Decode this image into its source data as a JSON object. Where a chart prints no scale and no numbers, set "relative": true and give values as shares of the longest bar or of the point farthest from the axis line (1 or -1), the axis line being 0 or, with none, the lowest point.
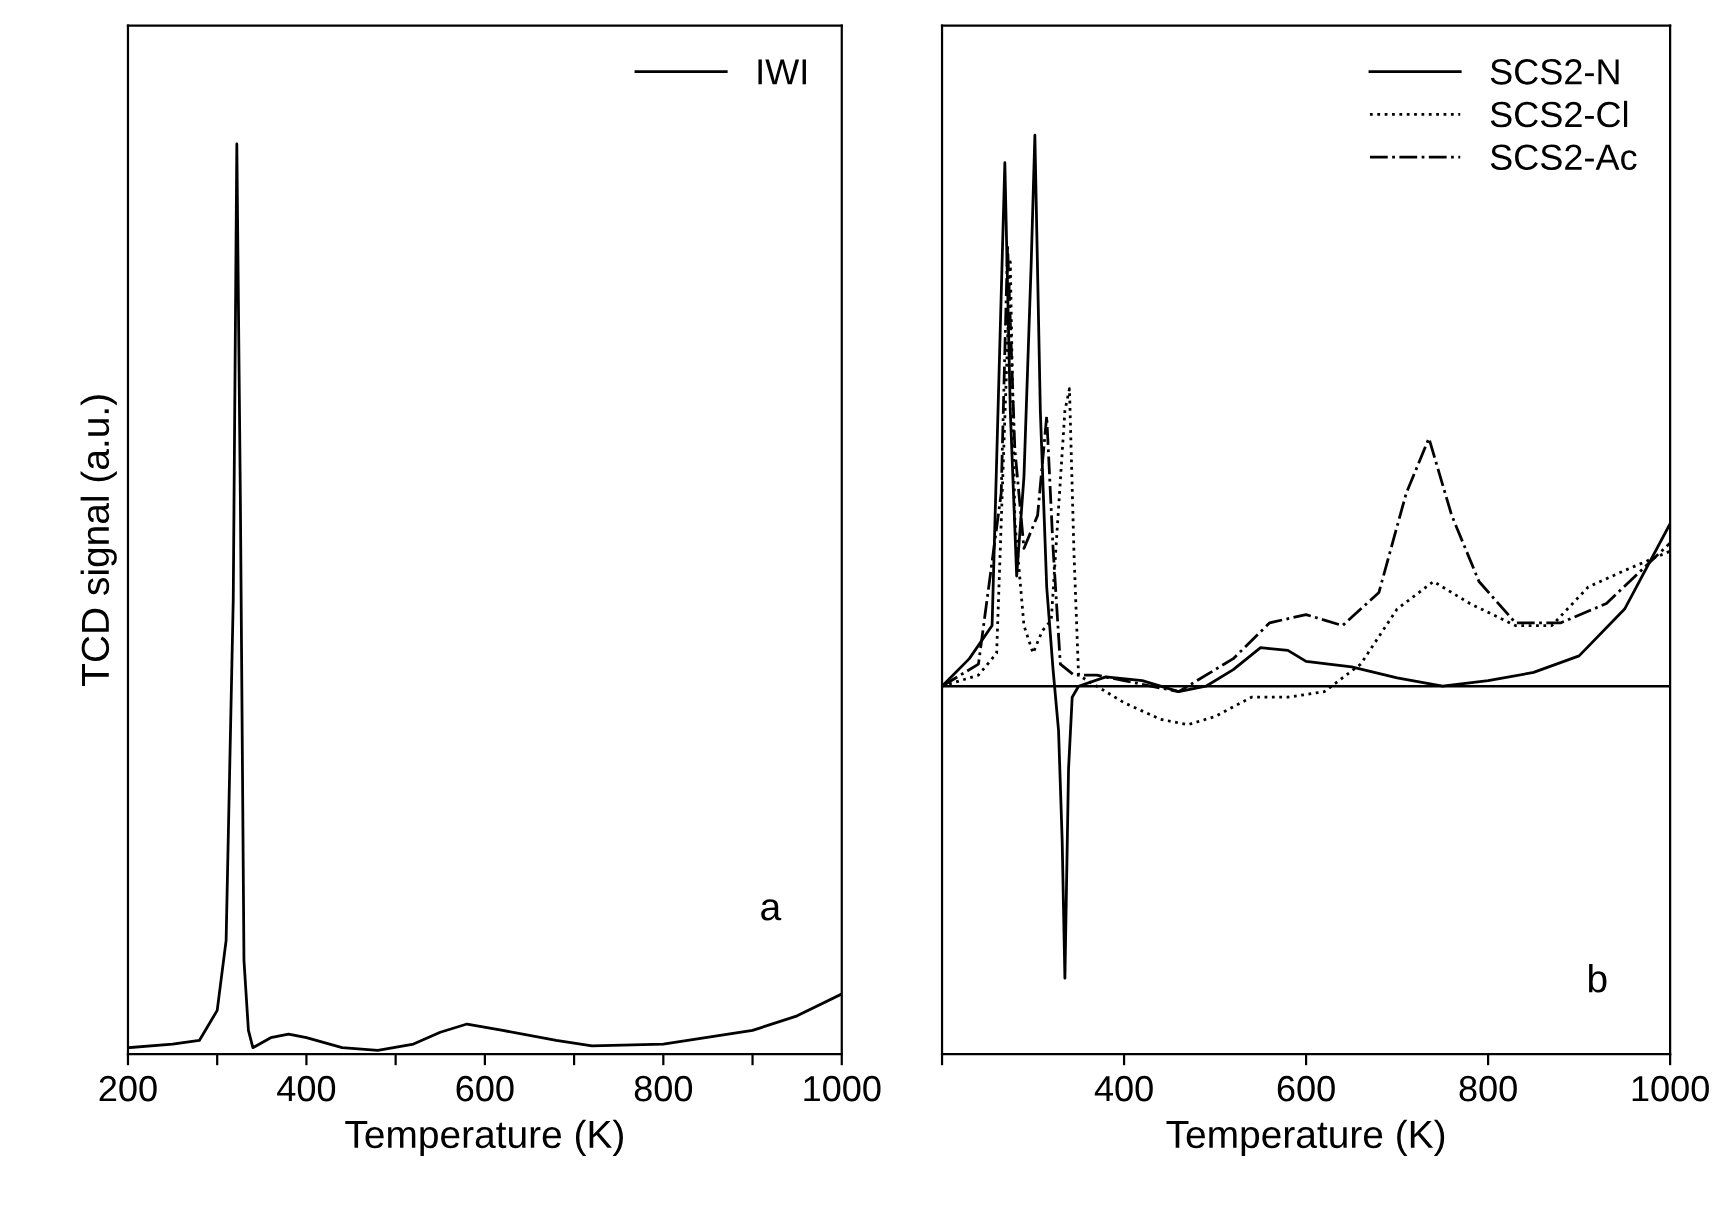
{
  "chart_data": [
    {
      "type": "line",
      "relative": true,
      "xlabel": "Temperature (K)",
      "ylabel": "TCD signal (a.u.)",
      "annotations": [
        "a"
      ],
      "xlim": [
        200,
        1000
      ],
      "xticks": [
        200,
        {
          "value": 300,
          "label": null
        },
        400,
        {
          "value": 500,
          "label": null
        },
        600,
        {
          "value": 700,
          "label": null
        },
        800,
        {
          "value": 900,
          "label": null
        },
        1000
      ],
      "tick_labels": "x",
      "legend": "top right",
      "grid": false,
      "series": [
        {
          "name": "IWI",
          "color": "#000000",
          "line_style": "solid",
          "x": [
            200,
            250,
            280,
            300,
            310,
            318,
            322,
            326,
            330,
            335,
            340,
            360,
            380,
            400,
            440,
            480,
            520,
            550,
            580,
            620,
            680,
            720,
            800,
            860,
            900,
            950,
            1000
          ],
          "values": [
            0.007,
            0.011,
            0.015,
            0.048,
            0.125,
            0.5,
            1.0,
            0.607,
            0.103,
            0.026,
            0.007,
            0.018,
            0.022,
            0.018,
            0.007,
            0.004,
            0.011,
            0.024,
            0.033,
            0.026,
            0.015,
            0.009,
            0.011,
            0.02,
            0.026,
            0.042,
            0.066
          ]
        }
      ]
    },
    {
      "type": "line",
      "relative": true,
      "xlabel": "Temperature (K)",
      "annotations": [
        "b"
      ],
      "xlim": [
        200,
        1000
      ],
      "xticks": [
        {
          "value": 200,
          "label": null
        },
        400,
        600,
        800,
        1000
      ],
      "tick_labels": "x",
      "legend": "top right",
      "grid": false,
      "ref_lines": [
        {
          "axis": "y",
          "value": 0,
          "color": "#000000"
        }
      ],
      "series": [
        {
          "name": "SCS2-N",
          "color": "#000000",
          "line_style": "solid",
          "x": [
            200,
            230,
            255,
            269,
            275,
            282,
            290,
            298,
            302,
            308,
            315,
            322,
            328,
            332,
            335,
            339,
            343,
            350,
            380,
            420,
            460,
            490,
            520,
            550,
            580,
            600,
            650,
            700,
            750,
            800,
            850,
            900,
            950,
            1000
          ],
          "values": [
            0,
            0.05,
            0.11,
            0.95,
            0.5,
            0.2,
            0.38,
            0.77,
            1.0,
            0.5,
            0.18,
            0.03,
            -0.08,
            -0.28,
            -0.53,
            -0.15,
            -0.02,
            0,
            0.017,
            0.01,
            -0.01,
            0,
            0.03,
            0.07,
            0.065,
            0.045,
            0.035,
            0.015,
            0,
            0.01,
            0.025,
            0.055,
            0.14,
            0.295
          ]
        },
        {
          "name": "SCS2-Cl",
          "color": "#000000",
          "line_style": "dotted",
          "x": [
            200,
            240,
            260,
            275,
            280,
            290,
            300,
            310,
            320,
            335,
            340,
            345,
            350,
            360,
            400,
            440,
            470,
            500,
            540,
            580,
            620,
            660,
            700,
            740,
            780,
            830,
            870,
            910,
            950,
            1000
          ],
          "values": [
            0,
            0.02,
            0.06,
            0.77,
            0.3,
            0.11,
            0.06,
            0.1,
            0.12,
            0.5,
            0.54,
            0.24,
            0.02,
            0.01,
            -0.03,
            -0.06,
            -0.07,
            -0.055,
            -0.02,
            -0.02,
            -0.01,
            0.04,
            0.14,
            0.19,
            0.15,
            0.11,
            0.11,
            0.18,
            0.21,
            0.245
          ]
        },
        {
          "name": "SCS2-Ac",
          "color": "#000000",
          "line_style": "dashdot",
          "x": [
            200,
            240,
            265,
            272,
            280,
            290,
            305,
            315,
            322,
            330,
            345,
            370,
            400,
            460,
            520,
            560,
            600,
            640,
            680,
            710,
            735,
            760,
            790,
            830,
            880,
            930,
            1000
          ],
          "values": [
            0,
            0.04,
            0.35,
            0.8,
            0.43,
            0.25,
            0.31,
            0.49,
            0.25,
            0.04,
            0.02,
            0.02,
            0.01,
            -0.01,
            0.05,
            0.115,
            0.13,
            0.11,
            0.17,
            0.35,
            0.45,
            0.31,
            0.19,
            0.115,
            0.115,
            0.15,
            0.26
          ]
        }
      ]
    }
  ]
}
